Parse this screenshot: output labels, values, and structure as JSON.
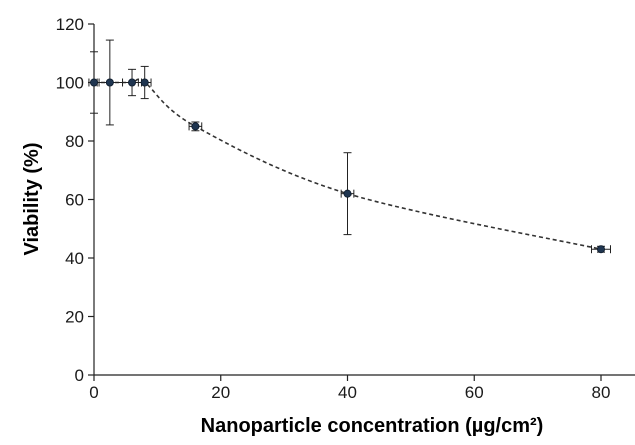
{
  "chart_data": {
    "type": "scatter",
    "title": "",
    "xlabel": "Nanoparticle concentration (µg/cm²)",
    "ylabel": "Viability (%)",
    "xlim": [
      0,
      90
    ],
    "ylim": [
      0,
      120
    ],
    "x_ticks": [
      0,
      20,
      40,
      60,
      80
    ],
    "y_ticks": [
      0,
      20,
      40,
      60,
      80,
      100,
      120
    ],
    "x_tick_labels": [
      "0",
      "20",
      "40",
      "60",
      "80"
    ],
    "y_tick_labels": [
      "0",
      "20",
      "40",
      "60",
      "80",
      "100",
      "120"
    ],
    "grid": false,
    "legend": "none",
    "fit_line": "dashed",
    "marker_color": "#1f3550",
    "series": [
      {
        "points": [
          {
            "x": 0,
            "y": 100,
            "y_err": 10.5,
            "x_err": 0.8
          },
          {
            "x": 2.5,
            "y": 100,
            "y_err": 14.5,
            "x_err": 2.0
          },
          {
            "x": 6,
            "y": 100,
            "y_err": 4.5,
            "x_err": 1.5
          },
          {
            "x": 8,
            "y": 100,
            "y_err": 5.5,
            "x_err": 1.0
          },
          {
            "x": 16,
            "y": 85,
            "y_err": 1.5,
            "x_err": 1.0
          },
          {
            "x": 40,
            "y": 62,
            "y_err": 14,
            "x_err": 1.0
          },
          {
            "x": 80,
            "y": 43,
            "y_err": 1.0,
            "x_err": 1.5
          }
        ]
      }
    ]
  }
}
